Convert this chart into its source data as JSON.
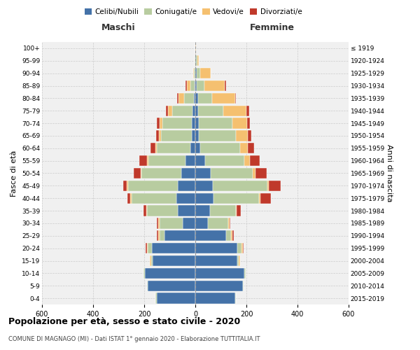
{
  "age_groups_bottom_to_top": [
    "0-4",
    "5-9",
    "10-14",
    "15-19",
    "20-24",
    "25-29",
    "30-34",
    "35-39",
    "40-44",
    "45-49",
    "50-54",
    "55-59",
    "60-64",
    "65-69",
    "70-74",
    "75-79",
    "80-84",
    "85-89",
    "90-94",
    "95-99",
    "100+"
  ],
  "birth_years_bottom_to_top": [
    "2015-2019",
    "2010-2014",
    "2005-2009",
    "2000-2004",
    "1995-1999",
    "1990-1994",
    "1985-1989",
    "1980-1984",
    "1975-1979",
    "1970-1974",
    "1965-1969",
    "1960-1964",
    "1955-1959",
    "1950-1954",
    "1945-1949",
    "1940-1944",
    "1935-1939",
    "1930-1934",
    "1925-1929",
    "1920-1924",
    "≤ 1919"
  ],
  "maschi_celibi": [
    152,
    185,
    198,
    168,
    170,
    120,
    50,
    68,
    75,
    68,
    55,
    38,
    20,
    15,
    15,
    10,
    5,
    3,
    0,
    0,
    0
  ],
  "maschi_coniugati": [
    5,
    5,
    5,
    5,
    15,
    20,
    90,
    120,
    175,
    195,
    155,
    145,
    130,
    120,
    115,
    80,
    40,
    15,
    5,
    2,
    0
  ],
  "maschi_vedovi": [
    0,
    0,
    0,
    5,
    5,
    5,
    5,
    5,
    5,
    5,
    5,
    5,
    5,
    8,
    10,
    18,
    22,
    15,
    3,
    0,
    0
  ],
  "maschi_divorziati": [
    0,
    0,
    0,
    0,
    5,
    5,
    5,
    10,
    12,
    15,
    25,
    30,
    20,
    10,
    10,
    8,
    5,
    5,
    0,
    0,
    0
  ],
  "femmine_nubili": [
    155,
    185,
    192,
    165,
    165,
    120,
    48,
    58,
    70,
    68,
    60,
    38,
    20,
    15,
    15,
    10,
    10,
    5,
    5,
    2,
    0
  ],
  "femmine_coniugate": [
    5,
    5,
    5,
    5,
    15,
    20,
    80,
    100,
    180,
    215,
    165,
    155,
    155,
    145,
    130,
    100,
    55,
    30,
    15,
    5,
    0
  ],
  "femmine_vedove": [
    0,
    0,
    0,
    5,
    5,
    5,
    5,
    5,
    5,
    5,
    10,
    20,
    30,
    45,
    58,
    90,
    90,
    80,
    40,
    8,
    2
  ],
  "femmine_divorziate": [
    0,
    0,
    0,
    0,
    5,
    5,
    5,
    15,
    40,
    45,
    45,
    40,
    25,
    15,
    10,
    10,
    5,
    5,
    0,
    0,
    0
  ],
  "colors": {
    "celibi": "#4472a8",
    "coniugati": "#b8cca0",
    "vedovi": "#f5c070",
    "divorziati": "#c0392b"
  },
  "title": "Popolazione per età, sesso e stato civile - 2020",
  "subtitle": "COMUNE DI MAGNAGO (MI) - Dati ISTAT 1° gennaio 2020 - Elaborazione TUTTITALIA.IT",
  "xlabel_left": "Maschi",
  "xlabel_right": "Femmine",
  "ylabel_left": "Fasce di età",
  "ylabel_right": "Anni di nascita",
  "legend_labels": [
    "Celibi/Nubili",
    "Coniugati/e",
    "Vedovi/e",
    "Divorziati/e"
  ],
  "bg_color": "#ffffff",
  "plot_bg_color": "#f0f0f0"
}
